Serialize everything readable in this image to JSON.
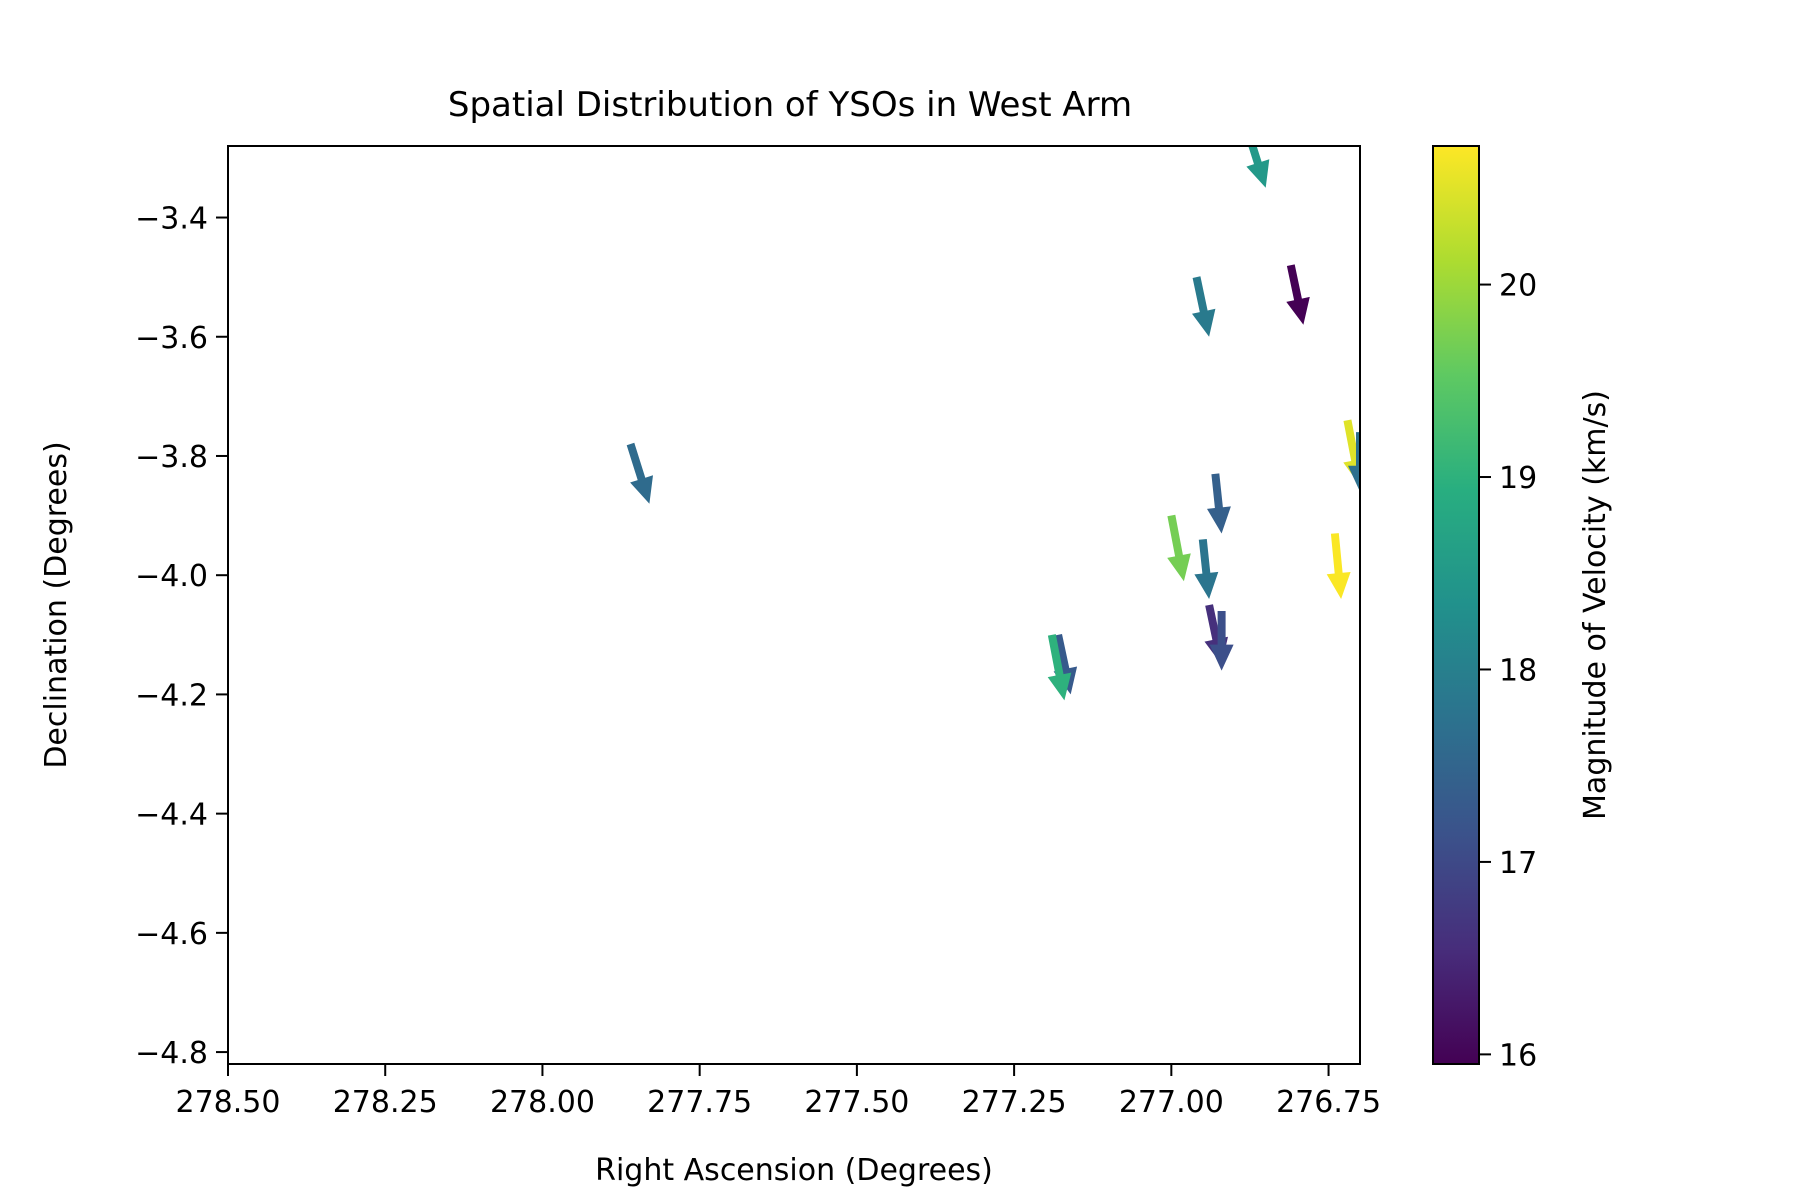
{
  "chart_data": {
    "type": "quiver",
    "title": "Spatial Distribution of YSOs in West Arm",
    "xlabel": "Right Ascension (Degrees)",
    "ylabel": "Declination (Degrees)",
    "xlim": [
      278.5,
      276.7
    ],
    "ylim": [
      -4.82,
      -3.28
    ],
    "xticks": [
      278.5,
      278.25,
      278.0,
      277.75,
      277.5,
      277.25,
      277.0,
      276.75
    ],
    "xtick_labels": [
      "278.50",
      "278.25",
      "278.00",
      "277.75",
      "277.50",
      "277.25",
      "277.00",
      "276.75"
    ],
    "yticks": [
      -3.4,
      -3.6,
      -3.8,
      -4.0,
      -4.2,
      -4.4,
      -4.6,
      -4.8
    ],
    "ytick_labels": [
      "−3.4",
      "−3.6",
      "−3.8",
      "−4.0",
      "−4.2",
      "−4.4",
      "−4.6",
      "−4.8"
    ],
    "grid": false,
    "colorbar": {
      "label": "Magnitude of Velocity (km/s)",
      "range": [
        15.95,
        20.72
      ],
      "colormap": "viridis",
      "ticks": [
        16,
        17,
        18,
        19,
        20
      ],
      "tick_labels": [
        "16",
        "17",
        "18",
        "19",
        "20"
      ]
    },
    "points": [
      {
        "ra": 277.86,
        "dec": -3.78,
        "u": -0.03,
        "v": -0.1,
        "speed": 17.6
      },
      {
        "ra": 276.88,
        "dec": -3.25,
        "u": -0.03,
        "v": -0.1,
        "speed": 18.5
      },
      {
        "ra": 276.96,
        "dec": -3.5,
        "u": -0.02,
        "v": -0.1,
        "speed": 17.9
      },
      {
        "ra": 276.81,
        "dec": -3.48,
        "u": -0.02,
        "v": -0.1,
        "speed": 15.95
      },
      {
        "ra": 276.72,
        "dec": -3.74,
        "u": -0.02,
        "v": -0.11,
        "speed": 20.5
      },
      {
        "ra": 276.7,
        "dec": -3.76,
        "u": 0.0,
        "v": -0.1,
        "speed": 17.7
      },
      {
        "ra": 276.93,
        "dec": -3.83,
        "u": -0.01,
        "v": -0.1,
        "speed": 17.4
      },
      {
        "ra": 277.0,
        "dec": -3.9,
        "u": -0.02,
        "v": -0.11,
        "speed": 19.7
      },
      {
        "ra": 276.95,
        "dec": -3.94,
        "u": -0.01,
        "v": -0.1,
        "speed": 17.8
      },
      {
        "ra": 276.74,
        "dec": -3.93,
        "u": -0.01,
        "v": -0.11,
        "speed": 20.7
      },
      {
        "ra": 276.94,
        "dec": -4.05,
        "u": -0.02,
        "v": -0.1,
        "speed": 16.6
      },
      {
        "ra": 276.92,
        "dec": -4.06,
        "u": 0.0,
        "v": -0.1,
        "speed": 17.1
      },
      {
        "ra": 277.18,
        "dec": -4.1,
        "u": -0.02,
        "v": -0.1,
        "speed": 17.3
      },
      {
        "ra": 277.19,
        "dec": -4.1,
        "u": -0.02,
        "v": -0.11,
        "speed": 19.0
      }
    ]
  }
}
